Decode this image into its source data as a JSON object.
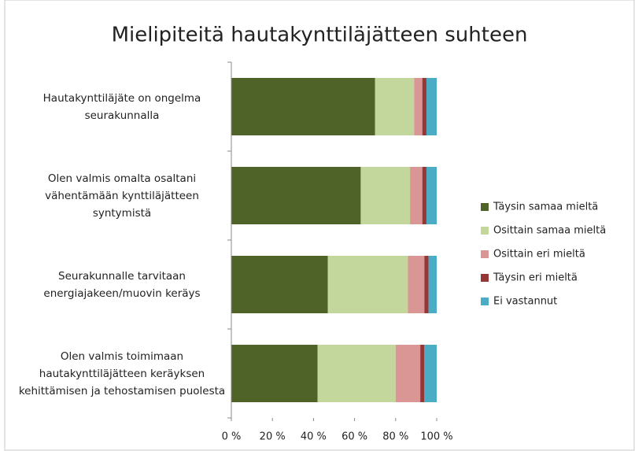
{
  "chart_data": {
    "type": "bar_stacked_horizontal",
    "title": "Mielipiteitä hautakynttiläjätteen suhteen",
    "categories": [
      "Hautakynttiläjäte on ongelma seurakunnalla",
      "Olen valmis omalta osaltani vähentämään kynttiläjätteen syntymistä",
      "Seurakunnalle tarvitaan energiajakeen/muovin keräys",
      "Olen valmis toimimaan hautakynttiläjätteen keräyksen kehittämisen ja tehostamisen puolesta"
    ],
    "series": [
      {
        "name": "Täysin samaa mieltä",
        "color": "#4f6228",
        "values": [
          70,
          63,
          47,
          42
        ]
      },
      {
        "name": "Osittain samaa mieltä",
        "color": "#c3d69b",
        "values": [
          19,
          24,
          39,
          38
        ]
      },
      {
        "name": "Osittain eri mieltä",
        "color": "#d99694",
        "values": [
          4,
          6,
          8,
          12
        ]
      },
      {
        "name": "Täysin eri mieltä",
        "color": "#953735",
        "values": [
          2,
          2,
          2,
          2
        ]
      },
      {
        "name": "Ei vastannut",
        "color": "#4bacc6",
        "values": [
          5,
          5,
          4,
          6
        ]
      }
    ],
    "xlim": [
      0,
      100
    ],
    "xticks": [
      {
        "value": 0,
        "label": "0 %"
      },
      {
        "value": 20,
        "label": "20 %"
      },
      {
        "value": 40,
        "label": "40 %"
      },
      {
        "value": 60,
        "label": "60 %"
      },
      {
        "value": 80,
        "label": "80 %"
      },
      {
        "value": 100,
        "label": "100 %"
      }
    ],
    "legend": "right"
  }
}
